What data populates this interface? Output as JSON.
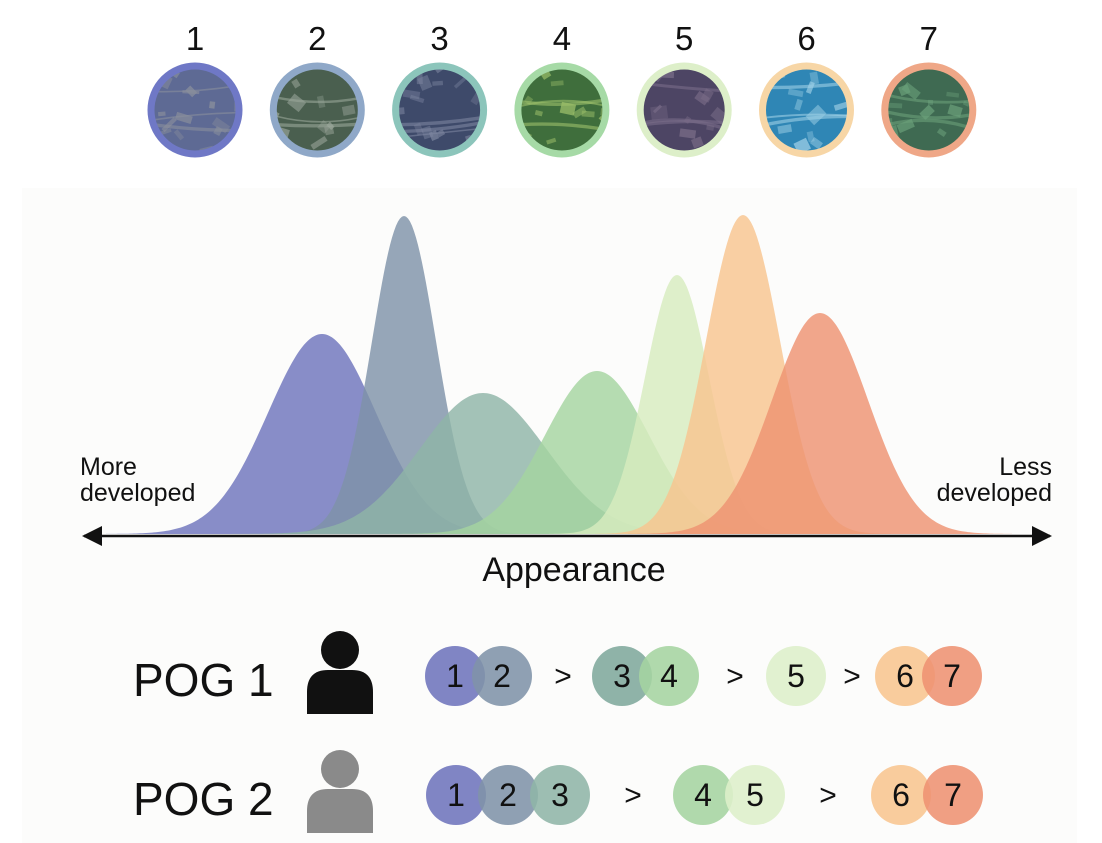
{
  "tiles": [
    {
      "number": "1",
      "color": "#6F78C6",
      "fill": "#5e6a94",
      "accent": "#8a8f9c"
    },
    {
      "number": "2",
      "color": "#8FA8C8",
      "fill": "#4a5f4f",
      "accent": "#9aa69a"
    },
    {
      "number": "3",
      "color": "#8CC5BB",
      "fill": "#3e4a6a",
      "accent": "#7d86a0"
    },
    {
      "number": "4",
      "color": "#A6DAA6",
      "fill": "#3f6e3c",
      "accent": "#9cbf6a"
    },
    {
      "number": "5",
      "color": "#DDEFC9",
      "fill": "#4d4564",
      "accent": "#7a6d88"
    },
    {
      "number": "6",
      "color": "#F7D6A6",
      "fill": "#2f86b5",
      "accent": "#9fd0e6"
    },
    {
      "number": "7",
      "color": "#EFA787",
      "fill": "#3f6a52",
      "accent": "#6aa07a"
    }
  ],
  "distribution": {
    "left_label": [
      "More",
      "developed"
    ],
    "right_label": [
      "Less",
      "developed"
    ],
    "axis_label": "Appearance",
    "curves": [
      {
        "id": "1",
        "mu": 322,
        "sigma": 54,
        "peak": 1.0,
        "color": "#6E74BC"
      },
      {
        "id": "2",
        "mu": 404,
        "sigma": 32,
        "peak": 1.0,
        "color": "#7F93A8"
      },
      {
        "id": "3",
        "mu": 483,
        "sigma": 63,
        "peak": 1.0,
        "color": "#8FB5A7"
      },
      {
        "id": "4",
        "mu": 597,
        "sigma": 52,
        "peak": 1.0,
        "color": "#A5D4A0"
      },
      {
        "id": "5",
        "mu": 677,
        "sigma": 32,
        "peak": 1.0,
        "color": "#D7ECBE"
      },
      {
        "id": "6",
        "mu": 743,
        "sigma": 37,
        "peak": 1.0,
        "color": "#F8C58F"
      },
      {
        "id": "7",
        "mu": 820,
        "sigma": 48,
        "peak": 1.0,
        "color": "#EE9272"
      }
    ]
  },
  "rankings": [
    {
      "label": "POG 1",
      "person_color": "#111111",
      "groups": [
        [
          {
            "n": "1",
            "color": "#6E74BC"
          },
          {
            "n": "2",
            "color": "#7F93A8"
          }
        ],
        [
          {
            "n": "3",
            "color": "#7FA89C"
          },
          {
            "n": "4",
            "color": "#A5D4A0"
          }
        ],
        [
          {
            "n": "5",
            "color": "#DDEFC9"
          }
        ],
        [
          {
            "n": "6",
            "color": "#F8C58F"
          },
          {
            "n": "7",
            "color": "#EE9272"
          }
        ]
      ]
    },
    {
      "label": "POG 2",
      "person_color": "#8A8A8A",
      "groups": [
        [
          {
            "n": "1",
            "color": "#6E74BC"
          },
          {
            "n": "2",
            "color": "#7F93A8"
          },
          {
            "n": "3",
            "color": "#8FB5A7"
          }
        ],
        [
          {
            "n": "4",
            "color": "#A5D4A0"
          },
          {
            "n": "5",
            "color": "#DDEFC9"
          }
        ],
        [
          {
            "n": "6",
            "color": "#F8C58F"
          },
          {
            "n": "7",
            "color": "#EE9272"
          }
        ]
      ]
    }
  ],
  "separator": ">"
}
